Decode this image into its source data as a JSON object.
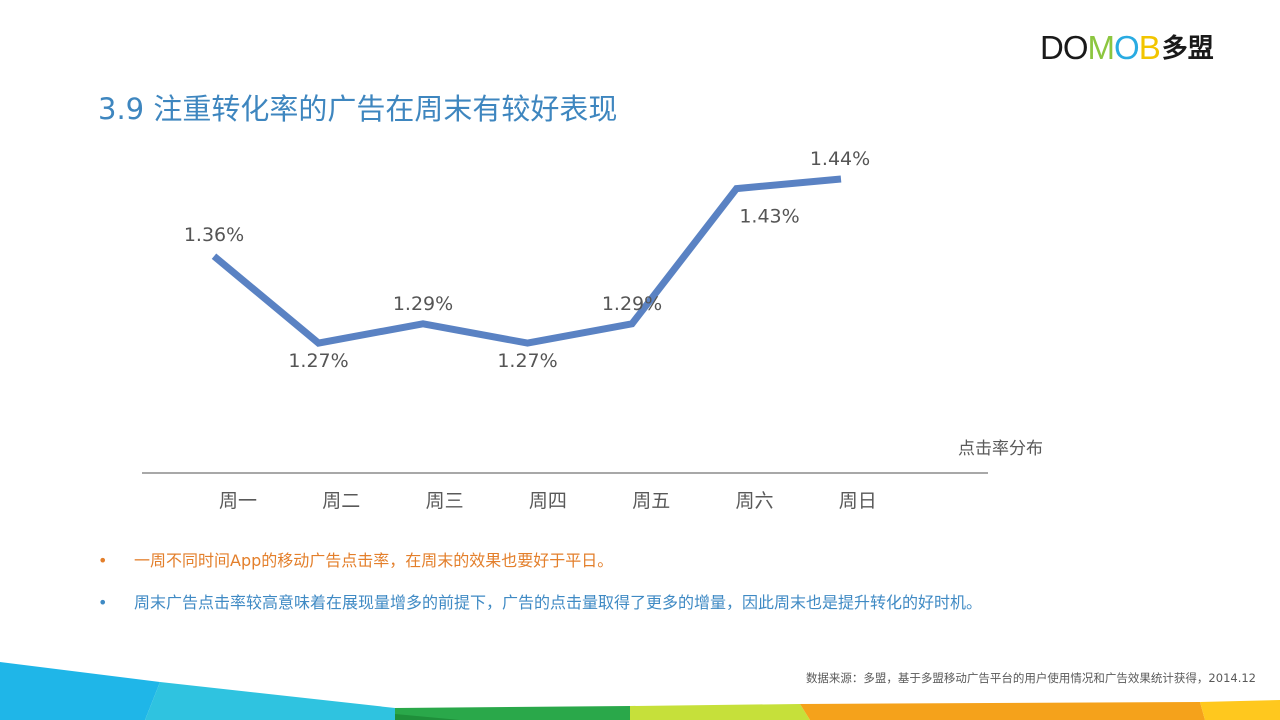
{
  "logo": {
    "letters": [
      {
        "ch": "D",
        "color": "#1a1a1a"
      },
      {
        "ch": "O",
        "color": "#1a1a1a"
      },
      {
        "ch": "M",
        "color": "#8cc63f"
      },
      {
        "ch": "O",
        "color": "#29abe2"
      },
      {
        "ch": "B",
        "color": "#f2c500"
      }
    ],
    "cn": "多盟"
  },
  "title": "3.9 注重转化率的广告在周末有较好表现",
  "chart_data": {
    "type": "line",
    "categories": [
      "周一",
      "周二",
      "周三",
      "周四",
      "周五",
      "周六",
      "周日"
    ],
    "values": [
      1.36,
      1.27,
      1.29,
      1.27,
      1.29,
      1.43,
      1.44
    ],
    "value_labels": [
      "1.36%",
      "1.27%",
      "1.29%",
      "1.27%",
      "1.29%",
      "1.43%",
      "1.44%"
    ],
    "caption": "点击率分布",
    "ylim": [
      1.18,
      1.47
    ],
    "color": "#5a82c3",
    "grid": false
  },
  "bullets": [
    {
      "text": "一周不同时间App的移动广告点击率，在周末的效果也要好于平日。",
      "color": "#e37f2b"
    },
    {
      "text": "周末广告点击率较高意味着在展现量增多的前提下，广告的点击量取得了更多的增量，因此周末也是提升转化的好时机。",
      "color": "#3f8ac4"
    }
  ],
  "bullet_mark": "•",
  "source": "数据来源：多盟，基于多盟移动广告平台的用户使用情况和广告效果统计获得，2014.12",
  "colors": {
    "title": "#3e86bf",
    "band": [
      "#1fb6e8",
      "#2fc3e0",
      "#2aa84a",
      "#1f8f3a",
      "#c6e03a",
      "#f5a21b",
      "#ffc81e"
    ]
  }
}
